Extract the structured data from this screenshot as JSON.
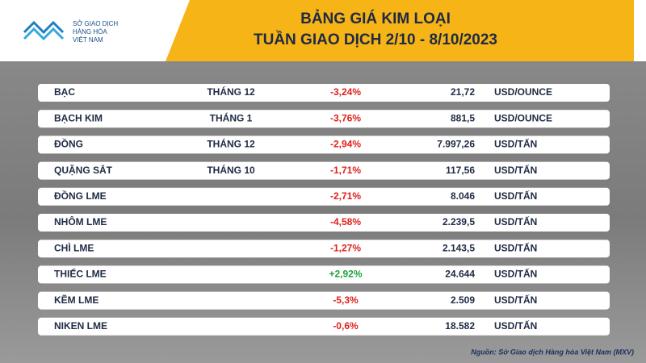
{
  "header": {
    "logo": [
      "SỞ GIAO DỊCH",
      "HÀNG HÓA",
      "VIỆT NAM"
    ],
    "title": [
      "BẢNG GIÁ KIM LOẠI",
      "TUẦN GIAO DỊCH 2/10 - 8/10/2023"
    ]
  },
  "table": {
    "rows": [
      {
        "name": "BẠC",
        "month": "THÁNG 12",
        "change": "-3,24%",
        "price": "21,72",
        "unit": "USD/OUNCE"
      },
      {
        "name": "BẠCH KIM",
        "month": "THÁNG 1",
        "change": "-3,76%",
        "price": "881,5",
        "unit": "USD/OUNCE"
      },
      {
        "name": "ĐỒNG",
        "month": "THÁNG 12",
        "change": "-2,94%",
        "price": "7.997,26",
        "unit": "USD/TẤN"
      },
      {
        "name": "QUẶNG SẮT",
        "month": "THÁNG 10",
        "change": "-1,71%",
        "price": "117,56",
        "unit": "USD/TẤN"
      },
      {
        "name": "ĐỒNG LME",
        "change": "-2,71%",
        "price": "8.046",
        "unit": "USD/TẤN"
      },
      {
        "name": "NHÔM LME",
        "change": "-4,58%",
        "price": "2.239,5",
        "unit": "USD/TẤN"
      },
      {
        "name": "CHÌ LME",
        "change": "-1,27%",
        "price": "2.143,5",
        "unit": "USD/TẤN"
      },
      {
        "name": "THIẾC LME",
        "change": "+2,92%",
        "price": "24.644",
        "unit": "USD/TẤN"
      },
      {
        "name": "KẼM LME",
        "change": "-5,3%",
        "price": "2.509",
        "unit": "USD/TẤN"
      },
      {
        "name": "NIKEN LME",
        "change": "-0,6%",
        "price": "18.582",
        "unit": "USD/TẤN"
      }
    ]
  },
  "source": "Nguồn: Sở Giao dịch Hàng hóa Việt Nam (MXV)"
}
